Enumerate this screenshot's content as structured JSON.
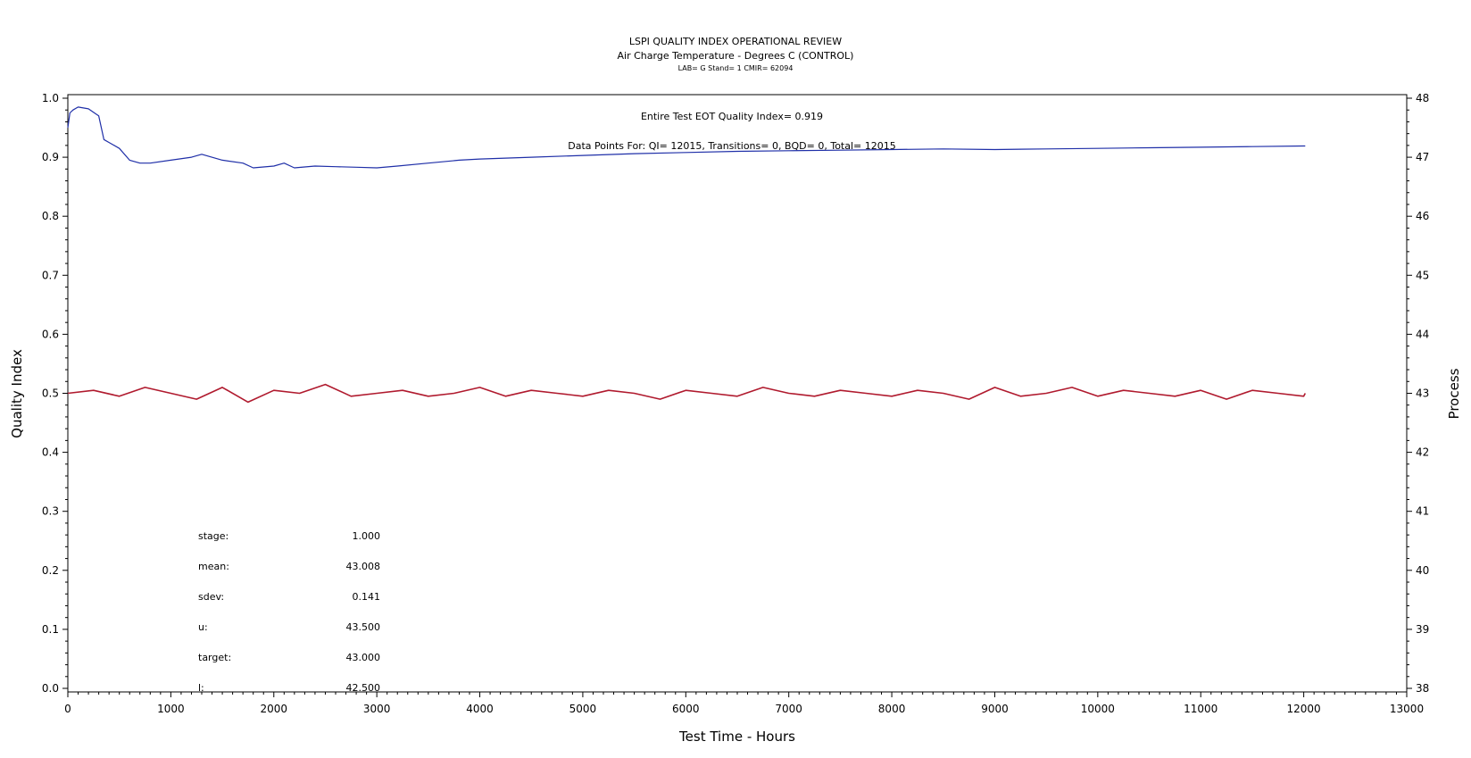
{
  "titles": {
    "line1": "LSPI QUALITY INDEX OPERATIONAL REVIEW",
    "line2": "Air Charge Temperature - Degrees C (CONTROL)",
    "line3": "LAB= G Stand= 1 CMIR= 62094"
  },
  "annotations": {
    "eot": "Entire Test EOT Quality Index=   0.919",
    "datapoints": "Data Points For: QI= 12015, Transitions=     0, BQD=     0, Total= 12015"
  },
  "stats": [
    {
      "label": "stage:",
      "value": "1.000"
    },
    {
      "label": "mean:",
      "value": "43.008"
    },
    {
      "label": "sdev:",
      "value": "0.141"
    },
    {
      "label": "u:",
      "value": "43.500"
    },
    {
      "label": "target:",
      "value": "43.000"
    },
    {
      "label": "l:",
      "value": "42.500"
    }
  ],
  "colors": {
    "quality_index": "#1f2fa8",
    "process": "#b01a2e",
    "axis": "#000000"
  },
  "chart_data": {
    "type": "line",
    "xlabel": "Test Time - Hours",
    "ylabel": "Quality Index",
    "y2label": "Process",
    "xlim": [
      0,
      13000
    ],
    "ylim": [
      0.0,
      1.0
    ],
    "y2lim": [
      38,
      48
    ],
    "xticks": [
      "0",
      "1000",
      "2000",
      "3000",
      "4000",
      "5000",
      "6000",
      "7000",
      "8000",
      "9000",
      "10000",
      "11000",
      "12000",
      "13000"
    ],
    "yticks": [
      "0.0",
      "0.1",
      "0.2",
      "0.3",
      "0.4",
      "0.5",
      "0.6",
      "0.7",
      "0.8",
      "0.9",
      "1.0"
    ],
    "y2ticks": [
      "38",
      "39",
      "40",
      "41",
      "42",
      "43",
      "44",
      "45",
      "46",
      "47",
      "48"
    ],
    "series": [
      {
        "axis": "left",
        "x": [
          0,
          20,
          50,
          100,
          200,
          300,
          350,
          400,
          500,
          600,
          700,
          800,
          1000,
          1200,
          1300,
          1500,
          1700,
          1800,
          2000,
          2100,
          2200,
          2400,
          2600,
          2800,
          3000,
          3200,
          3500,
          3800,
          4000,
          4500,
          5000,
          5500,
          6000,
          6500,
          7000,
          7500,
          8000,
          8500,
          9000,
          9500,
          10000,
          10500,
          11000,
          11500,
          12000,
          12015
        ],
        "y": [
          0.95,
          0.975,
          0.98,
          0.985,
          0.982,
          0.97,
          0.93,
          0.925,
          0.915,
          0.895,
          0.89,
          0.89,
          0.895,
          0.9,
          0.905,
          0.895,
          0.89,
          0.882,
          0.885,
          0.89,
          0.882,
          0.885,
          0.884,
          0.883,
          0.882,
          0.885,
          0.89,
          0.895,
          0.897,
          0.9,
          0.903,
          0.906,
          0.908,
          0.91,
          0.911,
          0.912,
          0.913,
          0.914,
          0.913,
          0.914,
          0.915,
          0.916,
          0.917,
          0.918,
          0.919,
          0.919
        ]
      },
      {
        "axis": "right",
        "x": [
          0,
          250,
          500,
          750,
          1000,
          1250,
          1500,
          1750,
          2000,
          2250,
          2500,
          2750,
          3000,
          3250,
          3500,
          3750,
          4000,
          4250,
          4500,
          4750,
          5000,
          5250,
          5500,
          5750,
          6000,
          6250,
          6500,
          6750,
          7000,
          7250,
          7500,
          7750,
          8000,
          8250,
          8500,
          8750,
          9000,
          9250,
          9500,
          9750,
          10000,
          10250,
          10500,
          10750,
          11000,
          11250,
          11500,
          11750,
          12000,
          12015
        ],
        "y": [
          43.0,
          43.05,
          42.95,
          43.1,
          43.0,
          42.9,
          43.1,
          42.85,
          43.05,
          43.0,
          43.15,
          42.95,
          43.0,
          43.05,
          42.95,
          43.0,
          43.1,
          42.95,
          43.05,
          43.0,
          42.95,
          43.05,
          43.0,
          42.9,
          43.05,
          43.0,
          42.95,
          43.1,
          43.0,
          42.95,
          43.05,
          43.0,
          42.95,
          43.05,
          43.0,
          42.9,
          43.1,
          42.95,
          43.0,
          43.1,
          42.95,
          43.05,
          43.0,
          42.95,
          43.05,
          42.9,
          43.05,
          43.0,
          42.95,
          43.0
        ]
      }
    ]
  }
}
